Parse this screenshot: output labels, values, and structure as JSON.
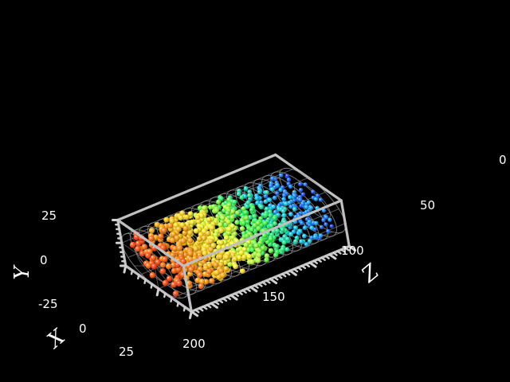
{
  "scene": {
    "type": "3d-scatter",
    "background": "#000000",
    "box_color": "#c0c0c0",
    "ring_color": "#9a9a9a"
  },
  "axes": {
    "x": {
      "title": "X",
      "ticks": [
        "0",
        "25"
      ]
    },
    "y": {
      "title": "Y",
      "ticks": [
        "25",
        "0",
        "-25"
      ]
    },
    "z": {
      "title": "Z",
      "ticks": [
        "0",
        "50",
        "100",
        "150",
        "200"
      ]
    }
  },
  "cylinder": {
    "radius": 25,
    "z_range": [
      0,
      200
    ],
    "rings": 18
  },
  "particles": {
    "count": 900,
    "color_scale": [
      "#1020ff",
      "#00c8ff",
      "#20ff40",
      "#ffff20",
      "#ffa000",
      "#ff3000"
    ]
  }
}
